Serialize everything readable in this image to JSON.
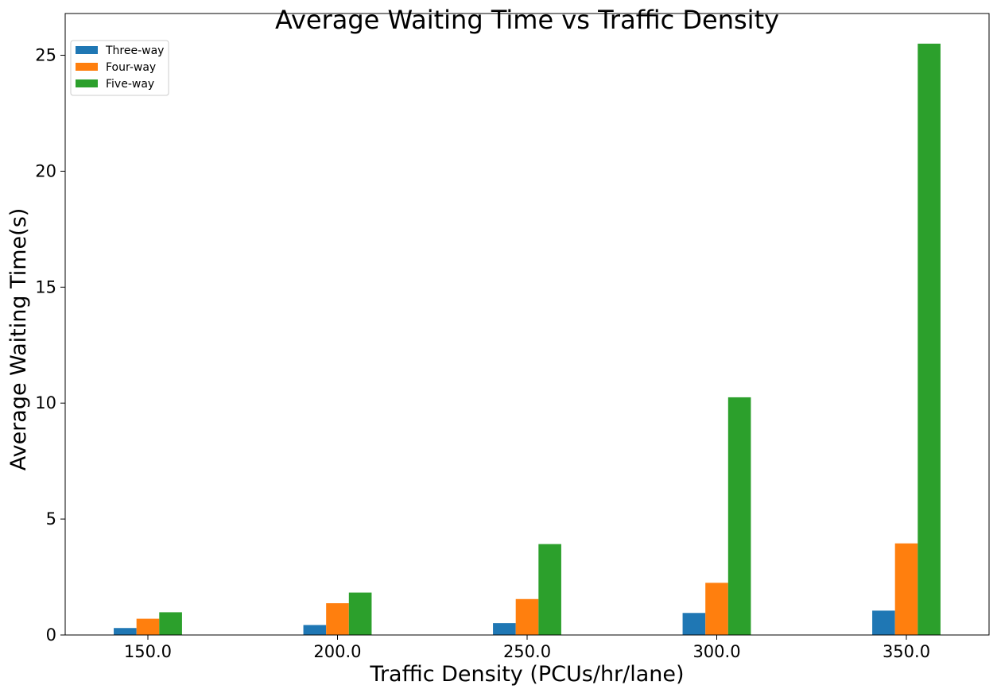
{
  "chart_data": {
    "type": "bar",
    "title": "Average Waiting Time  vs Traffic Density",
    "xlabel": "Traffic Density (PCUs/hr/lane)",
    "ylabel": "Average Waiting Time(s)",
    "categories": [
      "150.0",
      "200.0",
      "250.0",
      "300.0",
      "350.0"
    ],
    "series": [
      {
        "name": "Three-way",
        "color": "#1f77b4",
        "values": [
          0.3,
          0.43,
          0.51,
          0.95,
          1.05
        ]
      },
      {
        "name": "Four-way",
        "color": "#ff7f0e",
        "values": [
          0.7,
          1.37,
          1.55,
          2.25,
          3.95
        ]
      },
      {
        "name": "Five-way",
        "color": "#2ca02c",
        "values": [
          0.98,
          1.83,
          3.92,
          10.25,
          25.5
        ]
      }
    ],
    "ylim": [
      0,
      26.8
    ],
    "yticks": [
      0,
      5,
      10,
      15,
      20,
      25
    ],
    "grid": false,
    "legend_position": "top-left"
  }
}
